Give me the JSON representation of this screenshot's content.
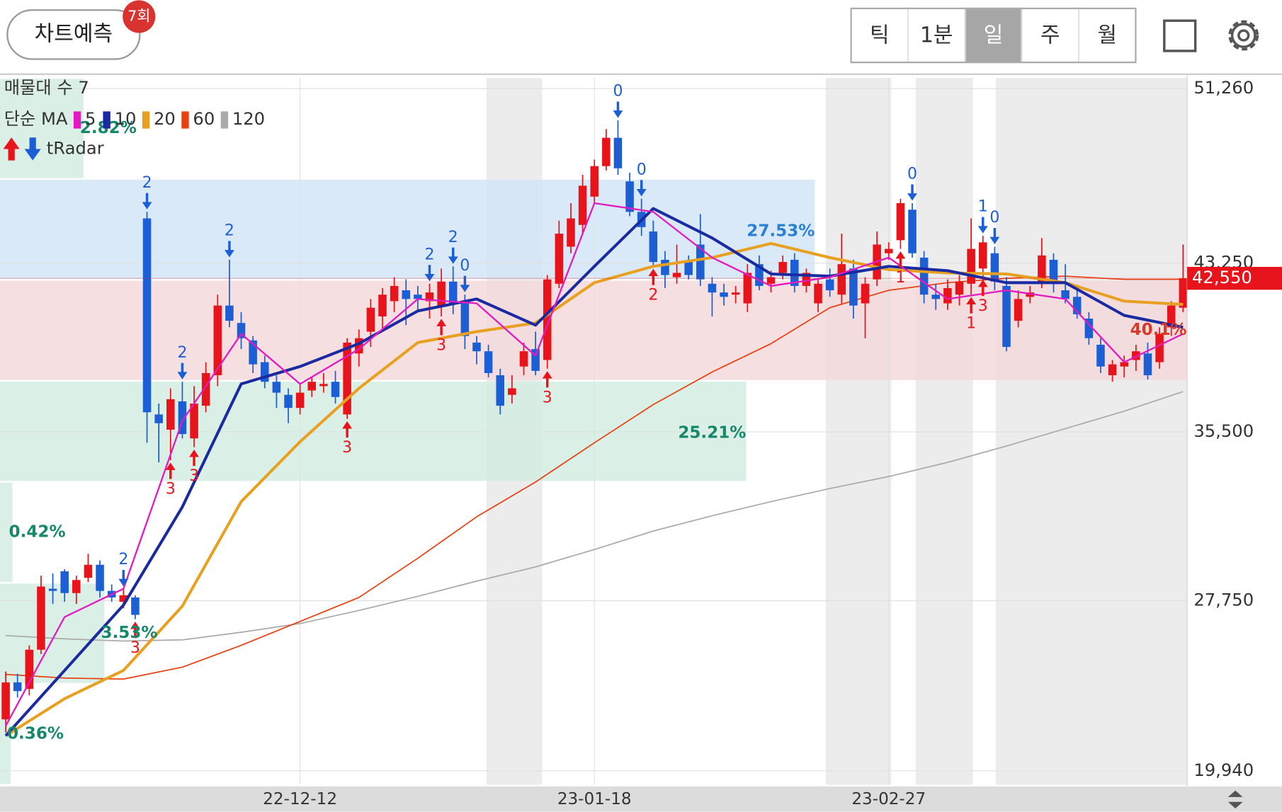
{
  "toolbar": {
    "predict_button": "차트예측",
    "badge": "7회",
    "intervals": [
      "틱",
      "1분",
      "일",
      "주",
      "월"
    ],
    "selected_interval": "일"
  },
  "chart_data": {
    "type": "candlestick",
    "legend": {
      "zone_count": "매물대 수 7",
      "ma_title": "단순 MA",
      "radar": "tRadar"
    },
    "categories": [
      null,
      null,
      null,
      null,
      null,
      null,
      null,
      null,
      null,
      null,
      null,
      null,
      null,
      null,
      null,
      null,
      null,
      null,
      null,
      null,
      null,
      null,
      null,
      null,
      null,
      "22-12-12",
      null,
      null,
      null,
      null,
      null,
      null,
      null,
      null,
      null,
      null,
      null,
      null,
      null,
      null,
      null,
      null,
      null,
      null,
      null,
      null,
      null,
      null,
      null,
      null,
      "23-01-18",
      null,
      null,
      null,
      null,
      null,
      null,
      null,
      null,
      null,
      null,
      null,
      null,
      null,
      null,
      null,
      null,
      null,
      null,
      null,
      null,
      null,
      null,
      null,
      null,
      "23-02-27",
      null,
      null,
      null,
      null,
      null,
      null,
      null,
      null,
      null,
      null,
      null,
      null,
      null,
      null,
      null,
      null,
      null,
      null,
      null,
      null,
      null,
      null,
      null,
      null,
      null
    ],
    "candles": [
      [
        22300,
        24500,
        21700,
        24000
      ],
      [
        24000,
        24400,
        23300,
        23600
      ],
      [
        23700,
        25700,
        23400,
        25500
      ],
      [
        25500,
        28900,
        25300,
        28400
      ],
      [
        28300,
        29000,
        27600,
        28200
      ],
      [
        29100,
        29200,
        27700,
        28100
      ],
      [
        28100,
        28900,
        27600,
        28700
      ],
      [
        28800,
        29900,
        28600,
        29400
      ],
      [
        29400,
        29600,
        27900,
        28200
      ],
      [
        28200,
        28500,
        27700,
        27900
      ],
      [
        27700,
        28300,
        27400,
        28000
      ],
      [
        27900,
        28000,
        26900,
        27100
      ],
      [
        45300,
        45600,
        35000,
        36400
      ],
      [
        36300,
        36800,
        34100,
        35900
      ],
      [
        35600,
        37500,
        34200,
        37000
      ],
      [
        36900,
        37800,
        35200,
        35400
      ],
      [
        35200,
        37600,
        34800,
        36800
      ],
      [
        36700,
        38700,
        36400,
        38200
      ],
      [
        38100,
        41800,
        37600,
        41300
      ],
      [
        41300,
        43400,
        40300,
        40600
      ],
      [
        40500,
        41000,
        39300,
        39800
      ],
      [
        39700,
        39900,
        38200,
        38600
      ],
      [
        38700,
        39000,
        37500,
        37800
      ],
      [
        37800,
        38100,
        36600,
        37300
      ],
      [
        37200,
        37500,
        35900,
        36600
      ],
      [
        36600,
        37700,
        36300,
        37300
      ],
      [
        37400,
        38000,
        37100,
        37800
      ],
      [
        37600,
        38200,
        37300,
        37700
      ],
      [
        37800,
        38300,
        36800,
        37100
      ],
      [
        36300,
        39800,
        36100,
        39600
      ],
      [
        39100,
        40200,
        38500,
        39800
      ],
      [
        40100,
        41600,
        39400,
        41200
      ],
      [
        40800,
        42100,
        40200,
        41800
      ],
      [
        41500,
        42600,
        41000,
        42200
      ],
      [
        42000,
        42500,
        40400,
        41600
      ],
      [
        41800,
        42200,
        41000,
        41600
      ],
      [
        41500,
        42300,
        40700,
        41900
      ],
      [
        41300,
        43000,
        40800,
        42400
      ],
      [
        42400,
        43100,
        40900,
        41400
      ],
      [
        41400,
        41800,
        39300,
        39900
      ],
      [
        39600,
        39900,
        38600,
        39200
      ],
      [
        39200,
        39500,
        38000,
        38200
      ],
      [
        38100,
        38400,
        36300,
        36700
      ],
      [
        37200,
        38100,
        36800,
        37500
      ],
      [
        38500,
        39600,
        38100,
        39200
      ],
      [
        39300,
        40100,
        38100,
        38300
      ],
      [
        38800,
        42700,
        38400,
        42500
      ],
      [
        42300,
        45200,
        42100,
        44600
      ],
      [
        44000,
        46000,
        43700,
        45300
      ],
      [
        45000,
        47300,
        44600,
        46800
      ],
      [
        46300,
        48000,
        46000,
        47700
      ],
      [
        47700,
        49400,
        47500,
        49000
      ],
      [
        49000,
        49800,
        47300,
        47600
      ],
      [
        47000,
        47400,
        45400,
        45600
      ],
      [
        45600,
        46200,
        44500,
        44900
      ],
      [
        44700,
        45200,
        43100,
        43300
      ],
      [
        43400,
        43800,
        42100,
        42700
      ],
      [
        42600,
        44100,
        42300,
        42800
      ],
      [
        43300,
        43600,
        42500,
        42700
      ],
      [
        44100,
        45500,
        42200,
        42500
      ],
      [
        42300,
        42600,
        40800,
        41900
      ],
      [
        41900,
        42300,
        41300,
        41700
      ],
      [
        41800,
        42200,
        41400,
        41900
      ],
      [
        41400,
        43200,
        41000,
        42800
      ],
      [
        43200,
        43600,
        42000,
        42200
      ],
      [
        42300,
        42900,
        41900,
        42600
      ],
      [
        42800,
        43600,
        42500,
        43300
      ],
      [
        43400,
        43700,
        41900,
        42200
      ],
      [
        42200,
        43000,
        41900,
        42800
      ],
      [
        41400,
        42500,
        41000,
        42300
      ],
      [
        42500,
        43000,
        41700,
        42000
      ],
      [
        41800,
        44600,
        41400,
        43200
      ],
      [
        43000,
        43400,
        40700,
        41300
      ],
      [
        41400,
        42600,
        39800,
        42300
      ],
      [
        42500,
        44700,
        42200,
        44100
      ],
      [
        43700,
        44200,
        43400,
        43900
      ],
      [
        44300,
        46200,
        43900,
        46000
      ],
      [
        45700,
        46000,
        43500,
        43700
      ],
      [
        43500,
        43800,
        41400,
        41800
      ],
      [
        41800,
        42300,
        41100,
        41600
      ],
      [
        41400,
        42500,
        41100,
        42100
      ],
      [
        41800,
        42700,
        41300,
        42400
      ],
      [
        42300,
        45300,
        41800,
        43900
      ],
      [
        43000,
        44500,
        42600,
        44200
      ],
      [
        43700,
        44000,
        42000,
        42400
      ],
      [
        42200,
        42600,
        39200,
        39400
      ],
      [
        40600,
        42000,
        40300,
        41600
      ],
      [
        41700,
        42200,
        41400,
        41900
      ],
      [
        42400,
        44400,
        42100,
        43600
      ],
      [
        43400,
        43700,
        41900,
        42300
      ],
      [
        42000,
        43200,
        41400,
        41600
      ],
      [
        41700,
        42000,
        40700,
        40900
      ],
      [
        40700,
        41000,
        39500,
        39800
      ],
      [
        39500,
        39800,
        38200,
        38500
      ],
      [
        38100,
        38800,
        37800,
        38600
      ],
      [
        38500,
        39000,
        38000,
        38700
      ],
      [
        38800,
        39500,
        38300,
        39200
      ],
      [
        39100,
        39600,
        37900,
        38100
      ],
      [
        38700,
        40300,
        38400,
        40000
      ],
      [
        40300,
        41500,
        39900,
        41300
      ],
      [
        41200,
        44100,
        41000,
        42550
      ]
    ],
    "up_color": "#e8141c",
    "down_color": "#1c5fd4",
    "ylim": [
      19300,
      51750
    ],
    "yticks": [
      {
        "value": 19940,
        "label": "19,940"
      },
      {
        "value": 27750,
        "label": "27,750"
      },
      {
        "value": 35500,
        "label": "35,500"
      },
      {
        "value": 43250,
        "label": "43,250"
      },
      {
        "value": 51260,
        "label": "51,260"
      }
    ],
    "grid": true,
    "last_price": {
      "value": 42550,
      "label": "42,550"
    },
    "ma_series": [
      {
        "name": "120",
        "color": "#aaaaaa",
        "width": 1.5,
        "x": [
          0,
          5,
          10,
          15,
          20,
          25,
          30,
          35,
          40,
          45,
          50,
          55,
          60,
          65,
          70,
          75,
          80,
          85,
          90,
          95,
          100
        ],
        "values": [
          26150,
          26000,
          25900,
          25950,
          26300,
          26700,
          27300,
          27950,
          28650,
          29300,
          30100,
          30950,
          31650,
          32300,
          32900,
          33450,
          34100,
          34850,
          35650,
          36450,
          37350
        ]
      },
      {
        "name": "60",
        "color": "#e84010",
        "width": 1.5,
        "x": [
          0,
          5,
          10,
          15,
          20,
          25,
          30,
          35,
          40,
          45,
          50,
          55,
          60,
          65,
          70,
          75,
          80,
          85,
          90,
          95,
          100
        ],
        "values": [
          24370,
          24200,
          24150,
          24700,
          25700,
          26800,
          27900,
          29700,
          31600,
          33200,
          35000,
          36750,
          38250,
          39550,
          41200,
          42000,
          42350,
          42550,
          42650,
          42500,
          42500
        ]
      },
      {
        "name": "20",
        "color": "#e8a020",
        "width": 3.5,
        "x": [
          0,
          5,
          10,
          15,
          20,
          25,
          30,
          35,
          40,
          45,
          50,
          55,
          60,
          65,
          70,
          75,
          80,
          85,
          90,
          95,
          100
        ],
        "values": [
          21550,
          23250,
          24550,
          27500,
          32300,
          35050,
          37500,
          39600,
          40100,
          40500,
          42350,
          43100,
          43500,
          44150,
          43500,
          42950,
          42800,
          42750,
          42350,
          41500,
          41350
        ]
      },
      {
        "name": "10",
        "color": "#1a2aa0",
        "width": 3.5,
        "x": [
          0,
          5,
          10,
          15,
          20,
          25,
          30,
          35,
          40,
          45,
          50,
          55,
          60,
          65,
          70,
          75,
          80,
          85,
          90,
          95,
          100
        ],
        "values": [
          21550,
          24550,
          27550,
          32050,
          37700,
          38500,
          39550,
          41050,
          41600,
          40400,
          43100,
          45750,
          44400,
          42750,
          42650,
          43100,
          42900,
          42350,
          42350,
          40850,
          40300
        ]
      },
      {
        "name": "5",
        "color": "#e21bc0",
        "width": 2,
        "x": [
          0,
          5,
          10,
          15,
          20,
          25,
          30,
          35,
          40,
          45,
          50,
          55,
          60,
          65,
          70,
          75,
          80,
          85,
          90,
          95,
          100
        ],
        "values": [
          22000,
          27000,
          28300,
          36000,
          40000,
          37700,
          39300,
          41600,
          41400,
          39000,
          46000,
          45600,
          43500,
          42200,
          42600,
          43500,
          41600,
          42000,
          41600,
          38700,
          40000
        ]
      }
    ],
    "legend_order": [
      "5",
      "10",
      "20",
      "60",
      "120"
    ],
    "zones": {
      "values": [
        2.82,
        27.53,
        40.1,
        25.21,
        0.42,
        3.53,
        0.36
      ],
      "value_labels": [
        "2.82%",
        "27.53%",
        "40.1%",
        "25.21%",
        "0.42%",
        "3.53%",
        "0.36%"
      ],
      "colors": [
        "#d4ede2",
        "#d3e5f7",
        "#f5d9da",
        "#d4ede2",
        "#d4ede2",
        "#d4ede2",
        "#d4ede2"
      ],
      "label_colors": [
        "#15876b",
        "#2a80d2",
        "#d63a2a",
        "#15876b",
        "#15876b",
        "#15876b",
        "#15876b"
      ]
    },
    "signals": [
      {
        "index": 10,
        "label": 2,
        "dir": "down"
      },
      {
        "index": 12,
        "label": 2,
        "dir": "down"
      },
      {
        "index": 15,
        "label": 2,
        "dir": "down"
      },
      {
        "index": 19,
        "label": 2,
        "dir": "down"
      },
      {
        "index": 36,
        "label": 2,
        "dir": "down"
      },
      {
        "index": 38,
        "label": 2,
        "dir": "down"
      },
      {
        "index": 39,
        "label": 0,
        "dir": "down"
      },
      {
        "index": 52,
        "label": 0,
        "dir": "down"
      },
      {
        "index": 54,
        "label": 0,
        "dir": "down"
      },
      {
        "index": 77,
        "label": 0,
        "dir": "down"
      },
      {
        "index": 83,
        "label": 1,
        "dir": "down"
      },
      {
        "index": 84,
        "label": 0,
        "dir": "down"
      },
      {
        "index": 11,
        "label": 3,
        "dir": "up"
      },
      {
        "index": 14,
        "label": 3,
        "dir": "up"
      },
      {
        "index": 16,
        "label": 3,
        "dir": "up"
      },
      {
        "index": 29,
        "label": 3,
        "dir": "up"
      },
      {
        "index": 37,
        "label": 3,
        "dir": "up"
      },
      {
        "index": 46,
        "label": 3,
        "dir": "up"
      },
      {
        "index": 55,
        "label": 2,
        "dir": "up"
      },
      {
        "index": 76,
        "label": 1,
        "dir": "up"
      },
      {
        "index": 82,
        "label": 1,
        "dir": "up"
      },
      {
        "index": 83,
        "label": 3,
        "dir": "up"
      }
    ]
  }
}
